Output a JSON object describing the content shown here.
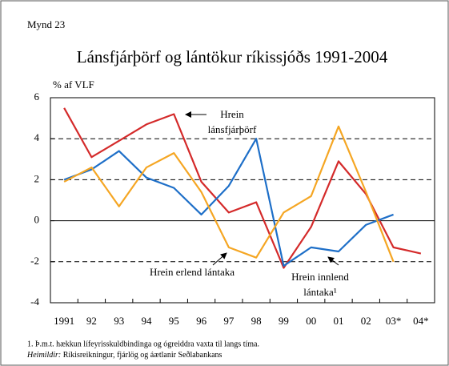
{
  "chart_data": {
    "type": "line",
    "figure_label": "Mynd 23",
    "title": "Lánsfjárþörf og lántökur ríkissjóðs 1991-2004",
    "y_axis_label": "% af VLF",
    "categories": [
      "1991",
      "92",
      "93",
      "94",
      "95",
      "96",
      "97",
      "98",
      "99",
      "00",
      "01",
      "02",
      "03*",
      "04*"
    ],
    "series": [
      {
        "name": "Hrein lánsfjárþörf",
        "color": "#d42a2a",
        "values": [
          5.5,
          3.1,
          3.9,
          4.7,
          5.2,
          1.9,
          0.4,
          0.9,
          -2.3,
          -0.3,
          2.9,
          1.3,
          -1.3,
          -1.6
        ]
      },
      {
        "name": "Hrein innlend lántaka¹",
        "color": "#1e6fc8",
        "values": [
          2.0,
          2.5,
          3.4,
          2.1,
          1.6,
          0.3,
          1.7,
          4.0,
          -2.2,
          -1.3,
          -1.5,
          -0.2,
          0.3,
          null
        ]
      },
      {
        "name": "Hrein erlend lántaka",
        "color": "#f5a623",
        "values": [
          1.9,
          2.6,
          0.7,
          2.6,
          3.3,
          1.4,
          -1.3,
          -1.8,
          0.4,
          1.2,
          4.6,
          1.4,
          -2.0,
          null
        ]
      }
    ],
    "ylim": [
      -4,
      6
    ],
    "yticks": [
      -4,
      -2,
      0,
      2,
      4,
      6
    ],
    "grid": true,
    "footnote": "1. Þ.m.t. hækkun lífeyrisskuldbindinga og ógreiddra vaxta til langs tíma.",
    "source_label": "Heimildir:",
    "source_text": "Ríkisreikningur, fjárlög og áætlanir Seðlabankans"
  }
}
